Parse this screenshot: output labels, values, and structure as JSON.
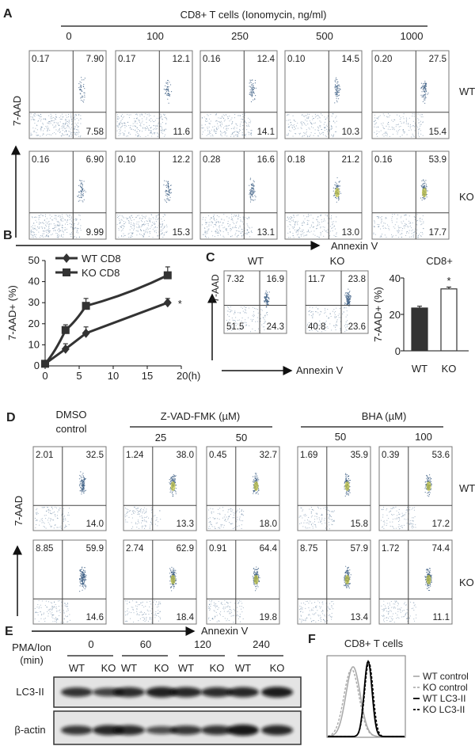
{
  "panelA": {
    "label": "A",
    "title": "CD8+ T cells (Ionomycin, ng/ml)",
    "columns": [
      "0",
      "100",
      "250",
      "500",
      "1000"
    ],
    "y_axis": "7-AAD",
    "x_axis": "Annexin V",
    "rows": [
      {
        "label": "WT",
        "values": [
          [
            "0.17",
            "7.90",
            "7.58"
          ],
          [
            "0.17",
            "12.1",
            "11.6"
          ],
          [
            "0.16",
            "12.4",
            "14.1"
          ],
          [
            "0.10",
            "14.5",
            "10.3"
          ],
          [
            "0.20",
            "27.5",
            "15.4"
          ]
        ]
      },
      {
        "label": "KO",
        "values": [
          [
            "0.16",
            "6.90",
            "9.99"
          ],
          [
            "0.10",
            "12.2",
            "15.3"
          ],
          [
            "0.28",
            "16.6",
            "13.1"
          ],
          [
            "0.18",
            "21.2",
            "13.0"
          ],
          [
            "0.16",
            "53.9",
            "17.7"
          ]
        ]
      }
    ]
  },
  "panelB": {
    "label": "B",
    "significance": "*",
    "chart_data": {
      "type": "line",
      "xlabel": "(h)",
      "ylabel": "7-AAD+ (%)",
      "xlim": [
        0,
        20
      ],
      "ylim": [
        0,
        50
      ],
      "xticks": [
        "0",
        "5",
        "10",
        "15",
        "20(h)"
      ],
      "yticks": [
        "0",
        "10",
        "20",
        "30",
        "40",
        "50"
      ],
      "legend": "top-left",
      "x": [
        0,
        3,
        6,
        18
      ],
      "series": [
        {
          "name": "WT CD8",
          "marker": "diamond",
          "values": [
            1,
            8,
            15.5,
            30
          ],
          "errors": [
            0.5,
            2.5,
            3,
            2
          ]
        },
        {
          "name": "KO CD8",
          "marker": "square",
          "values": [
            1,
            17,
            28.5,
            43
          ],
          "errors": [
            0.5,
            2.5,
            3.5,
            4
          ]
        }
      ]
    }
  },
  "panelC": {
    "label": "C",
    "y_axis": "7-AAD",
    "x_axis": "Annexin V",
    "plots": [
      {
        "label": "WT",
        "values": [
          "7.32",
          "16.9",
          "51.5",
          "24.3"
        ]
      },
      {
        "label": "KO",
        "values": [
          "11.7",
          "23.8",
          "40.8",
          "23.6"
        ]
      }
    ],
    "chart_data": {
      "type": "bar",
      "title": "CD8+",
      "ylabel": "7-AAD+ (%)",
      "ylim": [
        0,
        40
      ],
      "yticks": [
        "0",
        "20",
        "40"
      ],
      "categories": [
        "WT",
        "KO"
      ],
      "values": [
        23.5,
        34
      ],
      "errors": [
        1,
        1
      ],
      "colors": [
        "#333333",
        "#ffffff"
      ],
      "significance": "*"
    }
  },
  "panelD": {
    "label": "D",
    "groups": [
      {
        "title": "DMSO control",
        "title_lines": [
          "DMSO",
          "control"
        ]
      },
      {
        "title": "Z-VAD-FMK (µM)",
        "doses": [
          "25",
          "50"
        ]
      },
      {
        "title": "BHA (µM)",
        "doses": [
          "50",
          "100"
        ]
      }
    ],
    "y_axis": "7-AAD",
    "x_axis": "Annexin V",
    "rows": [
      {
        "label": "WT",
        "values": [
          [
            "2.01",
            "32.5",
            "14.0"
          ],
          [
            "1.24",
            "38.0",
            "13.3"
          ],
          [
            "0.45",
            "32.7",
            "18.0"
          ],
          [
            "1.69",
            "35.9",
            "15.8"
          ],
          [
            "0.39",
            "53.6",
            "17.2"
          ]
        ]
      },
      {
        "label": "KO",
        "values": [
          [
            "8.85",
            "59.9",
            "14.6"
          ],
          [
            "2.74",
            "62.9",
            "18.4"
          ],
          [
            "0.91",
            "64.4",
            "19.8"
          ],
          [
            "8.75",
            "57.9",
            "13.4"
          ],
          [
            "1.72",
            "74.4",
            "11.1"
          ]
        ]
      }
    ]
  },
  "panelE": {
    "label": "E",
    "treatment": [
      "PMA/Ion",
      "(min)"
    ],
    "times": [
      "0",
      "60",
      "120",
      "240"
    ],
    "lanes": [
      "WT",
      "KO",
      "WT",
      "KO",
      "WT",
      "KO",
      "WT",
      "KO"
    ],
    "blots": [
      "LC3-II",
      "β-actin"
    ]
  },
  "panelF": {
    "label": "F",
    "title": "CD8+ T cells",
    "legend": [
      {
        "name": "WT control",
        "color": "#b0b0b0",
        "style": "solid"
      },
      {
        "name": "KO control",
        "color": "#b0b0b0",
        "style": "dashed"
      },
      {
        "name": "WT LC3-II",
        "color": "#000000",
        "style": "solid"
      },
      {
        "name": "KO  LC3-II",
        "color": "#000000",
        "style": "dashed"
      }
    ]
  }
}
